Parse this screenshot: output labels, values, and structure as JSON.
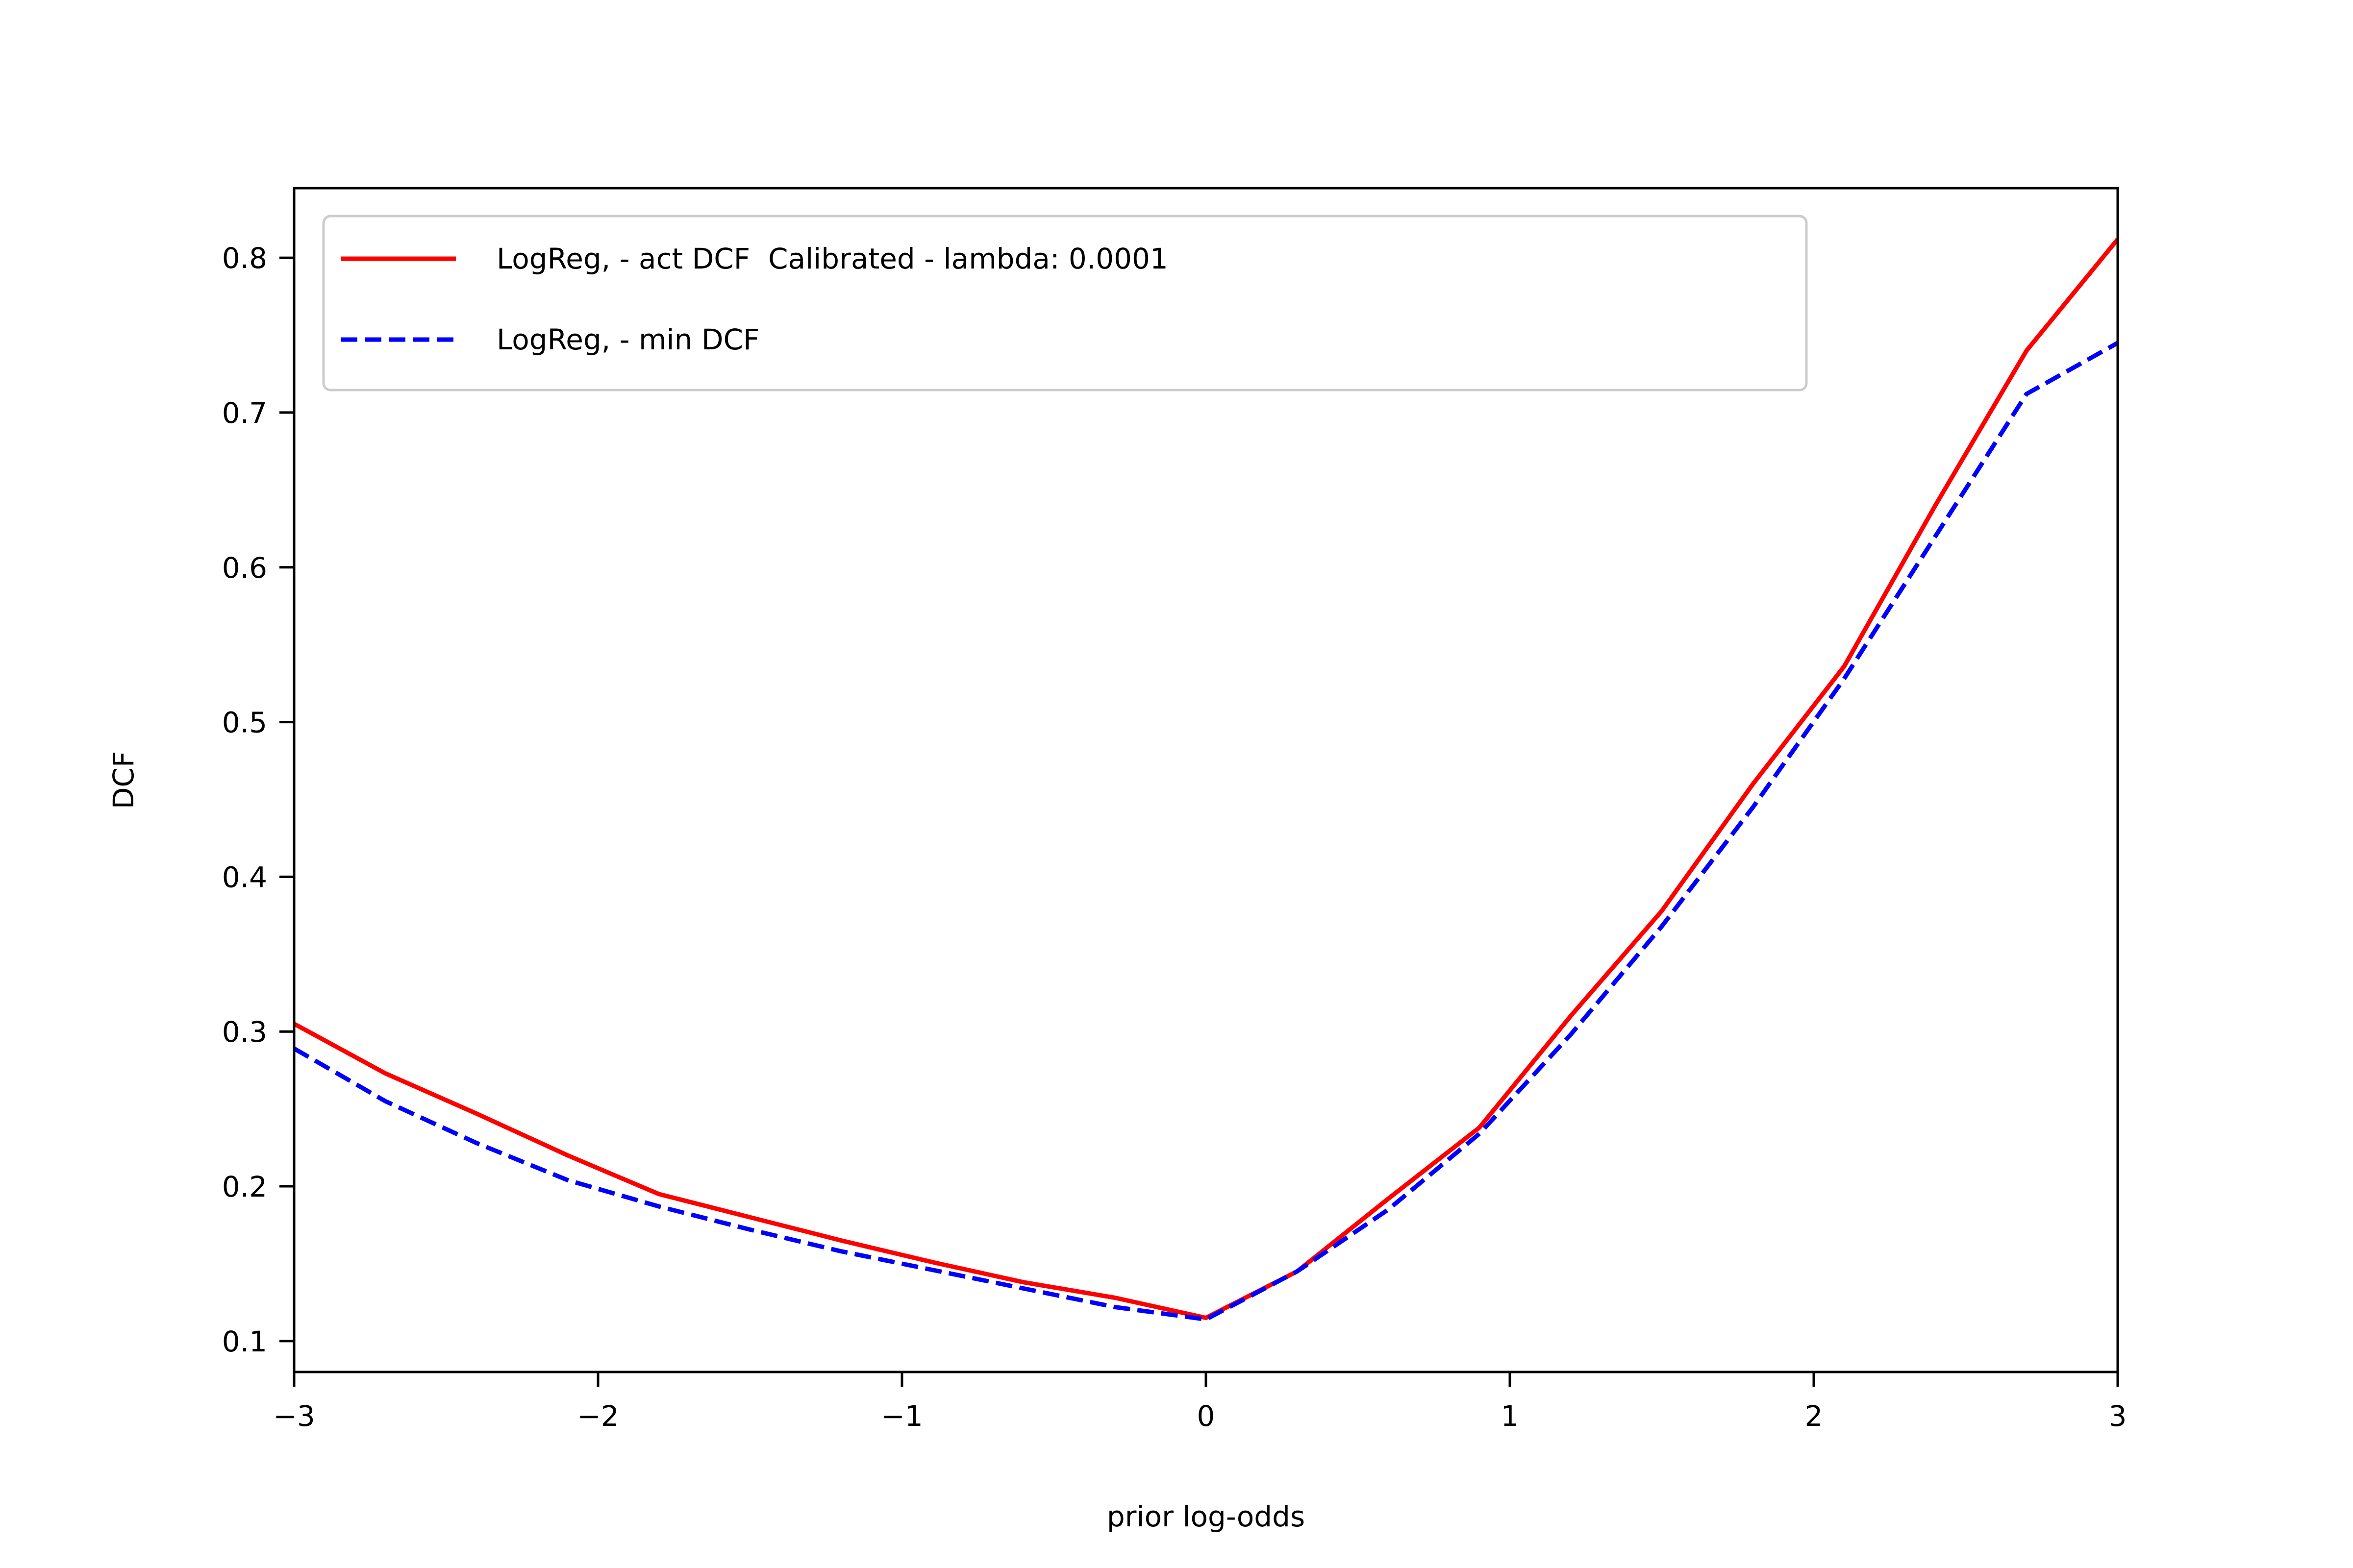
{
  "chart_data": {
    "type": "line",
    "title": "",
    "xlabel": "prior log-odds",
    "ylabel": "DCF",
    "xlim": [
      -3,
      3
    ],
    "ylim": [
      0.08,
      0.845
    ],
    "xticks": [
      -3,
      -2,
      -1,
      0,
      1,
      2,
      3
    ],
    "xtick_labels": [
      "−3",
      "−2",
      "−1",
      "0",
      "1",
      "2",
      "3"
    ],
    "yticks": [
      0.1,
      0.2,
      0.3,
      0.4,
      0.5,
      0.6,
      0.7,
      0.8
    ],
    "ytick_labels": [
      "0.1",
      "0.2",
      "0.3",
      "0.4",
      "0.5",
      "0.6",
      "0.7",
      "0.8"
    ],
    "grid": false,
    "legend_position": "top-left",
    "x": [
      -3.0,
      -2.7,
      -2.4,
      -2.1,
      -1.8,
      -1.5,
      -1.2,
      -0.9,
      -0.6,
      -0.3,
      0.0,
      0.3,
      0.6,
      0.9,
      1.2,
      1.5,
      1.8,
      2.1,
      2.4,
      2.7,
      3.0
    ],
    "series": [
      {
        "name": "LogReg, - act DCF  Calibrated - lambda: 0.0001",
        "color": "#ff0000",
        "style": "solid",
        "values": [
          0.305,
          0.273,
          0.247,
          0.22,
          0.195,
          0.18,
          0.165,
          0.151,
          0.138,
          0.128,
          0.115,
          0.145,
          0.192,
          0.238,
          0.31,
          0.378,
          0.46,
          0.536,
          0.64,
          0.74,
          0.812
        ]
      },
      {
        "name": "LogReg, - min DCF",
        "color": "#0000ff",
        "style": "dashed",
        "values": [
          0.289,
          0.255,
          0.228,
          0.204,
          0.187,
          0.172,
          0.158,
          0.146,
          0.134,
          0.122,
          0.114,
          0.145,
          0.185,
          0.234,
          0.298,
          0.368,
          0.445,
          0.528,
          0.62,
          0.712,
          0.745
        ]
      }
    ]
  }
}
